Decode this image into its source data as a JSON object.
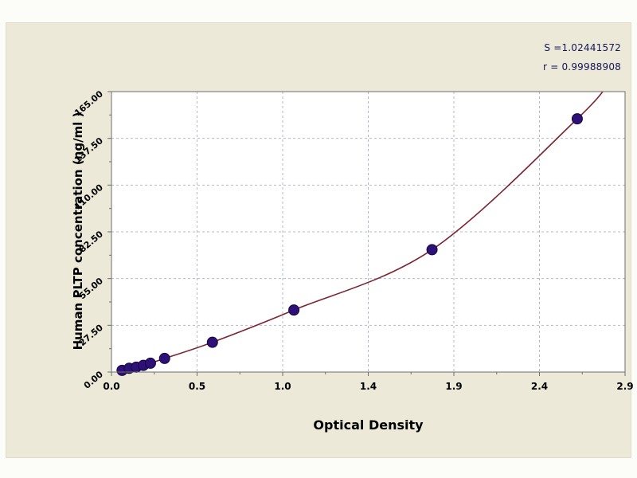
{
  "chart_data": {
    "type": "scatter",
    "xlabel": "Optical Density",
    "ylabel": "Human PLTP concentration (ng/ml )",
    "xlim": [
      0,
      2.9
    ],
    "ylim": [
      0,
      165
    ],
    "x_tick_labels": [
      "0.0",
      "0.5",
      "1.0",
      "1.4",
      "1.9",
      "2.4",
      "2.9"
    ],
    "y_tick_labels": [
      "0.00",
      "27.50",
      "55.00",
      "82.50",
      "110.00",
      "137.50",
      "165.00"
    ],
    "grid": true,
    "legend": false,
    "annotations": [
      "S =1.02441572",
      "r = 0.99988908"
    ],
    "points": [
      [
        0.06,
        1.0
      ],
      [
        0.1,
        2.2
      ],
      [
        0.14,
        2.9
      ],
      [
        0.18,
        3.9
      ],
      [
        0.22,
        5.2
      ],
      [
        0.3,
        8.0
      ],
      [
        0.57,
        17.5
      ],
      [
        1.03,
        36.5
      ],
      [
        1.81,
        72.0
      ],
      [
        2.63,
        149.0
      ]
    ],
    "curve_endpoints": [
      [
        0.03,
        0.0
      ],
      [
        2.82,
        172.0
      ]
    ],
    "colors": {
      "point": "#2d1178",
      "point_edge": "#140538",
      "curve": "#7b2433",
      "grid": "#b4b8d0",
      "panel": "#ece9d8",
      "plot_bg": "#ffffff",
      "border": "#6e6e6e",
      "text": "#000000",
      "stats_text": "#15155a"
    }
  }
}
